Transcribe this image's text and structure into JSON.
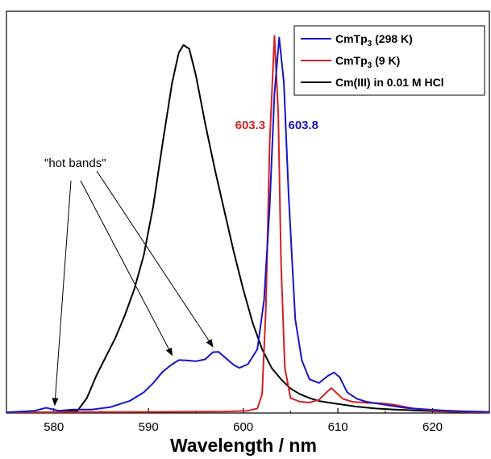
{
  "chart_data": {
    "type": "line",
    "xlabel": "Wavelength / nm",
    "ylabel": "",
    "xlim": [
      575,
      626
    ],
    "ylim": [
      0,
      1.07
    ],
    "xticks": [
      580,
      590,
      600,
      610,
      620
    ],
    "grid": false,
    "legend_position": "top-right",
    "series": [
      {
        "name": "CmTp3 (298 K)",
        "name_main": "CmTp",
        "name_sub": "3",
        "name_rest": " (298 K)",
        "color": "#1515c8",
        "points": [
          [
            575,
            0.002
          ],
          [
            578,
            0.006
          ],
          [
            579.2,
            0.014
          ],
          [
            580.5,
            0.006
          ],
          [
            582,
            0.009
          ],
          [
            584,
            0.009
          ],
          [
            586,
            0.016
          ],
          [
            588,
            0.032
          ],
          [
            589.5,
            0.055
          ],
          [
            590.5,
            0.08
          ],
          [
            591.5,
            0.11
          ],
          [
            592.5,
            0.13
          ],
          [
            593.2,
            0.141
          ],
          [
            594,
            0.14
          ],
          [
            595,
            0.138
          ],
          [
            596,
            0.143
          ],
          [
            596.8,
            0.162
          ],
          [
            597.4,
            0.163
          ],
          [
            598,
            0.15
          ],
          [
            599,
            0.128
          ],
          [
            599.6,
            0.12
          ],
          [
            600.5,
            0.13
          ],
          [
            601.5,
            0.17
          ],
          [
            602.2,
            0.3
          ],
          [
            602.8,
            0.55
          ],
          [
            603.3,
            0.85
          ],
          [
            603.8,
            1.0
          ],
          [
            604.3,
            0.88
          ],
          [
            604.8,
            0.58
          ],
          [
            605.5,
            0.25
          ],
          [
            606.2,
            0.14
          ],
          [
            607,
            0.09
          ],
          [
            608,
            0.08
          ],
          [
            609,
            0.1
          ],
          [
            609.6,
            0.108
          ],
          [
            610.2,
            0.095
          ],
          [
            611,
            0.055
          ],
          [
            612,
            0.038
          ],
          [
            613,
            0.03
          ],
          [
            615,
            0.022
          ],
          [
            617,
            0.014
          ],
          [
            619,
            0.01
          ],
          [
            621,
            0.007
          ],
          [
            623,
            0.005
          ],
          [
            626,
            0.003
          ]
        ]
      },
      {
        "name": "CmTp3 (9 K)",
        "name_main": "CmTp",
        "name_sub": "3",
        "name_rest": " (9 K)",
        "color": "#d42020",
        "points": [
          [
            575,
            0.002
          ],
          [
            590,
            0.003
          ],
          [
            598,
            0.004
          ],
          [
            600.5,
            0.006
          ],
          [
            601.5,
            0.012
          ],
          [
            602,
            0.05
          ],
          [
            602.4,
            0.28
          ],
          [
            602.8,
            0.72
          ],
          [
            603.3,
            1.005
          ],
          [
            603.7,
            0.8
          ],
          [
            604,
            0.4
          ],
          [
            604.4,
            0.12
          ],
          [
            605,
            0.04
          ],
          [
            606,
            0.03
          ],
          [
            607,
            0.028
          ],
          [
            608,
            0.035
          ],
          [
            608.8,
            0.055
          ],
          [
            609.3,
            0.066
          ],
          [
            609.8,
            0.055
          ],
          [
            610.5,
            0.038
          ],
          [
            611.5,
            0.03
          ],
          [
            613,
            0.027
          ],
          [
            614.5,
            0.026
          ],
          [
            616,
            0.022
          ],
          [
            618,
            0.012
          ],
          [
            620,
            0.006
          ],
          [
            623,
            0.003
          ],
          [
            626,
            0.002
          ]
        ]
      },
      {
        "name": "Cm(III) in 0.01 M HCl",
        "name_main": "Cm(III) in 0.01 M HCl",
        "name_sub": "",
        "name_rest": "",
        "color": "#000000",
        "points": [
          [
            575,
            0.002
          ],
          [
            580,
            0.002
          ],
          [
            582.5,
            0.006
          ],
          [
            583.5,
            0.04
          ],
          [
            584.5,
            0.1
          ],
          [
            585.5,
            0.15
          ],
          [
            586.5,
            0.2
          ],
          [
            587.5,
            0.26
          ],
          [
            588.5,
            0.33
          ],
          [
            589.5,
            0.42
          ],
          [
            590.5,
            0.55
          ],
          [
            591.5,
            0.72
          ],
          [
            592.5,
            0.88
          ],
          [
            593.2,
            0.96
          ],
          [
            593.7,
            0.98
          ],
          [
            594.3,
            0.97
          ],
          [
            595,
            0.9
          ],
          [
            596,
            0.77
          ],
          [
            597,
            0.65
          ],
          [
            598,
            0.54
          ],
          [
            599,
            0.43
          ],
          [
            600,
            0.33
          ],
          [
            601,
            0.24
          ],
          [
            602,
            0.17
          ],
          [
            603,
            0.12
          ],
          [
            604,
            0.09
          ],
          [
            605,
            0.065
          ],
          [
            606,
            0.05
          ],
          [
            607,
            0.04
          ],
          [
            608,
            0.032
          ],
          [
            609,
            0.028
          ],
          [
            610,
            0.024
          ],
          [
            612,
            0.017
          ],
          [
            614,
            0.012
          ],
          [
            616,
            0.009
          ],
          [
            618,
            0.007
          ],
          [
            620,
            0.005
          ],
          [
            623,
            0.003
          ],
          [
            626,
            0.002
          ]
        ]
      }
    ],
    "annotations": {
      "hot_bands_text": "\"hot bands\"",
      "arrow_targets": [
        [
          580.1,
          0.012
        ],
        [
          592.5,
          0.145
        ],
        [
          596.8,
          0.168
        ]
      ],
      "peak_label_red": "603.3",
      "peak_label_blue": "603.8",
      "peak_label_red_x": 603.3,
      "peak_label_blue_x": 603.8
    }
  }
}
